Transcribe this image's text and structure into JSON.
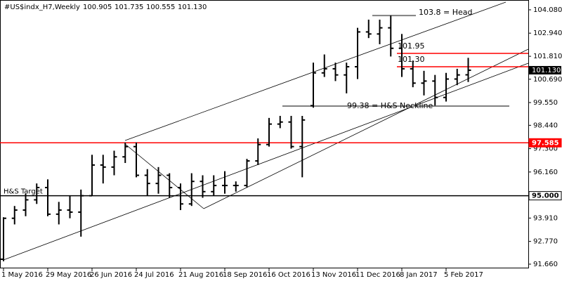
{
  "header": {
    "symbol": "#US$indx_H7,Weekly",
    "ohlc": [
      "100.905",
      "101.735",
      "100.555",
      "101.130"
    ]
  },
  "chart_data": {
    "type": "ohlc",
    "color": "#000000",
    "categories": [
      "1 May 2016",
      null,
      null,
      null,
      "29 May 2016",
      null,
      null,
      null,
      "26 Jun 2016",
      null,
      null,
      null,
      "24 Jul 2016",
      null,
      null,
      null,
      "21 Aug 2016",
      null,
      null,
      null,
      "18 Sep 2016",
      null,
      null,
      null,
      "16 Oct 2016",
      null,
      null,
      null,
      "13 Nov 2016",
      null,
      null,
      null,
      "11 Dec 2016",
      null,
      null,
      null,
      "8 Jan 2017",
      null,
      null,
      null,
      "5 Feb 2017",
      null,
      null
    ],
    "open": [
      91.9,
      93.9,
      94.3,
      94.8,
      95.4,
      94.1,
      94.3,
      94.2,
      95.0,
      96.5,
      96.4,
      96.9,
      97.4,
      96.0,
      95.6,
      96.0,
      95.4,
      94.6,
      95.7,
      95.2,
      95.5,
      95.5,
      95.5,
      96.7,
      97.5,
      98.5,
      98.6,
      97.4,
      99.4,
      101.0,
      101.2,
      100.9,
      101.3,
      103.0,
      102.9,
      103.2,
      102.2,
      101.2,
      100.5,
      100.6,
      99.8,
      100.7,
      100.905
    ],
    "high": [
      93.95,
      94.5,
      95.1,
      95.6,
      95.8,
      94.7,
      95.0,
      95.3,
      97.0,
      97.0,
      97.2,
      97.6,
      97.6,
      96.3,
      96.4,
      96.1,
      95.6,
      96.1,
      96.0,
      96.0,
      96.2,
      95.7,
      96.8,
      97.8,
      98.8,
      98.9,
      98.9,
      98.9,
      101.5,
      101.9,
      101.5,
      101.5,
      103.2,
      103.6,
      103.6,
      103.8,
      102.9,
      101.6,
      101.1,
      100.9,
      101.0,
      101.2,
      101.735
    ],
    "low": [
      91.8,
      93.6,
      94.0,
      94.6,
      94.0,
      93.6,
      93.9,
      93.0,
      95.0,
      95.6,
      96.0,
      96.6,
      95.9,
      95.0,
      95.1,
      94.9,
      94.3,
      94.5,
      94.9,
      95.0,
      95.1,
      95.2,
      95.4,
      96.5,
      97.4,
      98.3,
      97.3,
      95.9,
      99.3,
      100.8,
      100.6,
      100.0,
      100.7,
      102.7,
      102.4,
      101.8,
      100.8,
      100.3,
      99.9,
      99.4,
      99.6,
      100.4,
      100.555
    ],
    "close": [
      93.9,
      94.3,
      94.8,
      95.4,
      94.1,
      94.3,
      94.2,
      95.0,
      96.5,
      96.4,
      96.9,
      97.4,
      96.0,
      95.6,
      96.0,
      95.4,
      94.6,
      95.7,
      95.2,
      95.5,
      95.5,
      95.5,
      96.7,
      97.5,
      98.5,
      98.6,
      97.4,
      98.7,
      101.0,
      101.2,
      100.9,
      101.3,
      103.0,
      102.9,
      103.2,
      102.2,
      101.2,
      100.5,
      100.6,
      99.8,
      100.7,
      100.9,
      101.13
    ],
    "ylim": [
      91.454,
      104.559
    ],
    "yticks": [
      {
        "value": 91.66,
        "label": "91.660"
      },
      {
        "value": 92.77,
        "label": "92.770"
      },
      {
        "value": 93.91,
        "label": "93.910"
      },
      {
        "value": 96.16,
        "label": "96.160"
      },
      {
        "value": 97.3,
        "label": "97.300"
      },
      {
        "value": 98.44,
        "label": "98.440"
      },
      {
        "value": 99.55,
        "label": "99.550"
      },
      {
        "value": 100.69,
        "label": "100.690"
      },
      {
        "value": 101.81,
        "label": "101.810"
      },
      {
        "value": 102.94,
        "label": "102.940"
      },
      {
        "value": 104.08,
        "label": "104.080"
      }
    ],
    "levels": [
      {
        "value": 103.8,
        "label": "103.8 = Head",
        "color": "#808080"
      },
      {
        "value": 101.95,
        "label": "101.95",
        "color": "#ff0000"
      },
      {
        "value": 101.3,
        "label": "101.30",
        "color": "#ff0000"
      },
      {
        "value": 99.38,
        "label": "99.38 = H&S Neckline",
        "color": "#808080"
      },
      {
        "value": 97.585,
        "label": "97.585",
        "color": "#ff0000"
      },
      {
        "value": 95.0,
        "label": "95.000",
        "color": "#000000",
        "note": "H&S Target"
      }
    ],
    "last": {
      "value": 101.13,
      "label": "101.130"
    }
  }
}
